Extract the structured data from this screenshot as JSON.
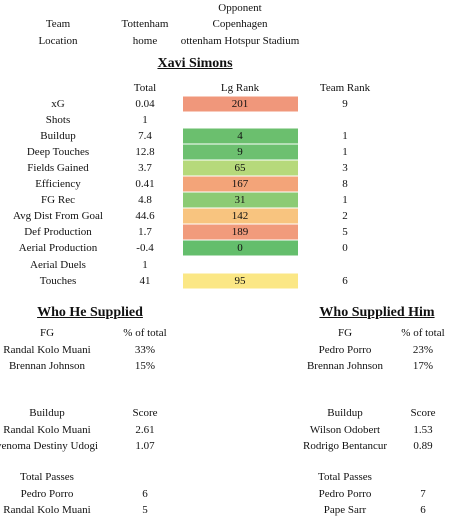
{
  "match": {
    "opponent_label": "Opponent",
    "team_label": "Team",
    "team": "Tottenham",
    "opponent": "Copenhagen",
    "location_label": "Location",
    "location": "home",
    "venue": "ottenham Hotspur Stadium"
  },
  "player": {
    "name": "Xavi Simons",
    "columns": [
      "Total",
      "Lg Rank",
      "Team Rank"
    ],
    "rows": [
      {
        "label": "xG",
        "total": 0.04,
        "lg_rank": 201,
        "team_rank": 9,
        "color": "#f0977b"
      },
      {
        "label": "Shots",
        "total": 1,
        "lg_rank": null,
        "team_rank": null,
        "color": null
      },
      {
        "label": "Buildup",
        "total": 7.4,
        "lg_rank": 4,
        "team_rank": 1,
        "color": "#6bbf6e"
      },
      {
        "label": "Deep Touches",
        "total": 12.8,
        "lg_rank": 9,
        "team_rank": 1,
        "color": "#6dc070"
      },
      {
        "label": "Fields Gained",
        "total": 3.7,
        "lg_rank": 65,
        "team_rank": 3,
        "color": "#b6d97b"
      },
      {
        "label": "Efficiency",
        "total": 0.41,
        "lg_rank": 167,
        "team_rank": 8,
        "color": "#f3a479"
      },
      {
        "label": "FG Rec",
        "total": 4.8,
        "lg_rank": 31,
        "team_rank": 1,
        "color": "#8ccb74"
      },
      {
        "label": "Avg Dist From Goal",
        "total": 44.6,
        "lg_rank": 142,
        "team_rank": 2,
        "color": "#f8c47f"
      },
      {
        "label": "Def Production",
        "total": 1.7,
        "lg_rank": 189,
        "team_rank": 5,
        "color": "#f19b7c"
      },
      {
        "label": "Aerial Production",
        "total": -0.4,
        "lg_rank": 0,
        "team_rank": 0,
        "color": "#64be6c"
      },
      {
        "label": "Aerial Duels",
        "total": 1,
        "lg_rank": null,
        "team_rank": null,
        "color": null
      },
      {
        "label": "Touches",
        "total": 41,
        "lg_rank": 95,
        "team_rank": 6,
        "color": "#fbe785"
      }
    ]
  },
  "supplied": {
    "title": "Who He Supplied",
    "tables": [
      {
        "columns": [
          "FG",
          "% of total"
        ],
        "rows": [
          [
            "Randal Kolo Muani",
            "33%"
          ],
          [
            "Brennan Johnson",
            "15%"
          ]
        ]
      },
      {
        "columns": [
          "Buildup",
          "Score"
        ],
        "rows": [
          [
            "Randal Kolo Muani",
            2.61
          ],
          [
            "yenoma Destiny Udogi",
            1.07
          ]
        ]
      },
      {
        "columns": [
          "Total Passes",
          ""
        ],
        "rows": [
          [
            "Pedro Porro",
            6
          ],
          [
            "Randal Kolo Muani",
            5
          ]
        ]
      }
    ]
  },
  "supplied_by": {
    "title": "Who Supplied Him",
    "tables": [
      {
        "columns": [
          "FG",
          "% of total"
        ],
        "rows": [
          [
            "Pedro Porro",
            "23%"
          ],
          [
            "Brennan Johnson",
            "17%"
          ]
        ]
      },
      {
        "columns": [
          "Buildup",
          "Score"
        ],
        "rows": [
          [
            "Wilson Odobert",
            1.53
          ],
          [
            "Rodrigo Bentancur",
            0.89
          ]
        ]
      },
      {
        "columns": [
          "Total Passes",
          ""
        ],
        "rows": [
          [
            "Pedro Porro",
            7
          ],
          [
            "Pape Sarr",
            6
          ]
        ]
      }
    ]
  }
}
